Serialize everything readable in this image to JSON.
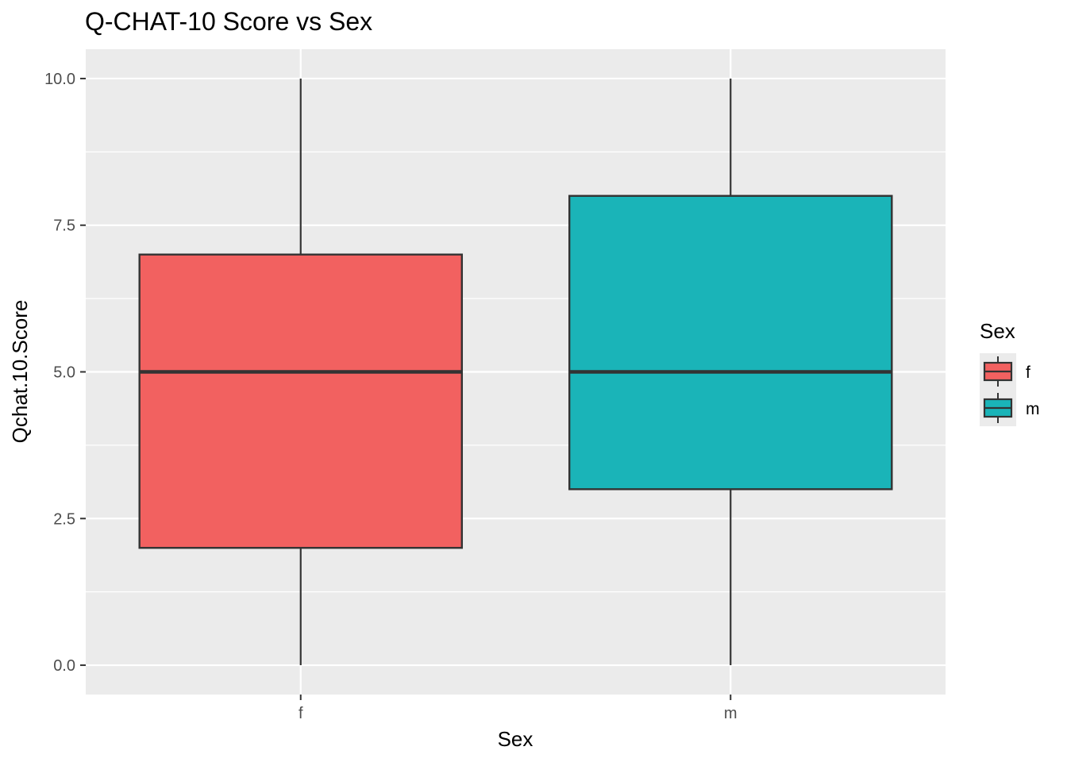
{
  "chart_data": {
    "type": "box",
    "title": "Q-CHAT-10 Score vs Sex",
    "xlabel": "Sex",
    "ylabel": "Qchat.10.Score",
    "ylim": [
      -0.5,
      10.5
    ],
    "y_ticks": [
      "0.0",
      "2.5",
      "5.0",
      "7.5",
      "10.0"
    ],
    "y_tick_values": [
      0,
      2.5,
      5,
      7.5,
      10
    ],
    "grid": true,
    "legend_position": "right",
    "categories": [
      "f",
      "m"
    ],
    "series": [
      {
        "name": "f",
        "color": "#F26160",
        "min": 0,
        "q1": 2,
        "median": 5,
        "q3": 7,
        "max": 10
      },
      {
        "name": "m",
        "color": "#1AB4B8",
        "min": 0,
        "q1": 3,
        "median": 5,
        "q3": 8,
        "max": 10
      }
    ]
  },
  "legend": {
    "title": "Sex",
    "items": [
      {
        "label": "f",
        "color": "#F26160"
      },
      {
        "label": "m",
        "color": "#1AB4B8"
      }
    ]
  }
}
